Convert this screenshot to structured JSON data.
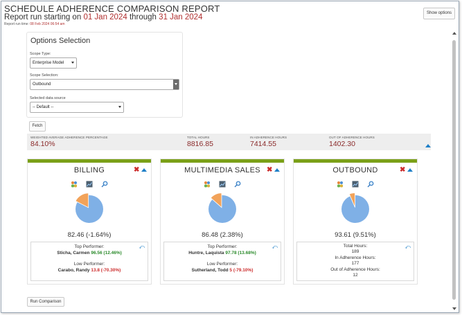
{
  "header": {
    "title": "SCHEDULE ADHERENCE COMPARISON REPORT",
    "subtitle_prefix": "Report run starting on",
    "start_date": "01 Jan 2024",
    "subtitle_mid": "through",
    "end_date": "31 Jan 2024",
    "runtime_label": "Report run time:",
    "runtime_value": "08 Feb 2024 06:54 am",
    "show_options_label": "Show options"
  },
  "options": {
    "title": "Options Selection",
    "scope_type_label": "Scope Type:",
    "scope_type_value": "Enterprise Model",
    "scope_selection_label": "Scope Selection:",
    "scope_selection_value": "Outbound",
    "data_source_label": "Selected data source",
    "data_source_value": "-- Default --",
    "fetch_label": "Fetch"
  },
  "summary": {
    "weighted_label": "WEIGHTED AVERAGE ADHERENCE PERCENTAGE",
    "weighted_value": "84.10%",
    "total_hours_label": "TOTAL HOURS",
    "total_hours_value": "8816.85",
    "in_adherence_label": "IN ADHERENCE HOURS",
    "in_adherence_value": "7414.55",
    "out_adherence_label": "OUT OF ADHERENCE HOURS",
    "out_adherence_value": "1402.30"
  },
  "cards": [
    {
      "title": "BILLING",
      "pie_value": "82.46 (-1.64%)",
      "adherence_fraction": 0.8246,
      "top_label": "Top Performer:",
      "top_name": "Sticha, Carmen",
      "top_score": "96.56 (12.46%)",
      "low_label": "Low Performer:",
      "low_name": "Carabo, Randy",
      "low_score": "13.8 (-70.30%)"
    },
    {
      "title": "MULTIMEDIA SALES",
      "pie_value": "86.48 (2.38%)",
      "adherence_fraction": 0.8648,
      "top_label": "Top Performer:",
      "top_name": "Huntre, Laquista",
      "top_score": "97.78 (13.68%)",
      "low_label": "Low Performer:",
      "low_name": "Sutherland, Todd",
      "low_score": "5 (-79.10%)"
    },
    {
      "title": "OUTBOUND",
      "pie_value": "93.61 (9.51%)",
      "adherence_fraction": 0.9361,
      "total_label": "Total Hours:",
      "total_value": "189",
      "in_label": "In Adherence Hours:",
      "in_value": "177",
      "out_label": "Out of Adherence Hours:",
      "out_value": "12"
    }
  ],
  "footer": {
    "run_comparison_label": "Run Comparison"
  },
  "colors": {
    "pie_main": "#7fb0e6",
    "pie_slice": "#f2a35a",
    "accent_bar": "#7ba018",
    "date_red": "#b03030",
    "value_red": "#8a2a2a"
  }
}
